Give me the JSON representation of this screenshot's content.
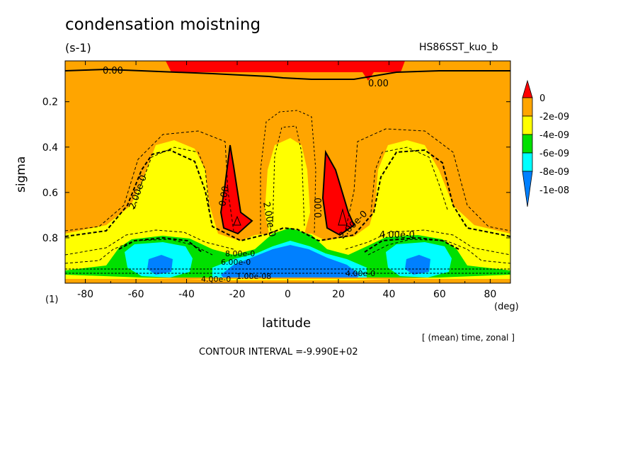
{
  "chart_data": {
    "type": "heatmap",
    "title": "condensation moistning",
    "units": "(s-1)",
    "dataset": "HS86SST_kuo_b",
    "xlabel": "latitude",
    "xunit": "(deg)",
    "ylabel": "sigma",
    "yunit": "(1)",
    "xlim": [
      -88,
      88
    ],
    "ylim": [
      0.02,
      1.0
    ],
    "y_inverted": true,
    "xticks": [
      "-80",
      "-60",
      "-40",
      "-20",
      "0",
      "20",
      "40",
      "60",
      "80"
    ],
    "yticks": [
      "0.2",
      "0.4",
      "0.6",
      "0.8"
    ],
    "x_tick_values": [
      -80,
      -60,
      -40,
      -20,
      0,
      20,
      40,
      60,
      80
    ],
    "y_tick_values": [
      0.2,
      0.4,
      0.6,
      0.8
    ],
    "legend": {
      "placement": "right",
      "labels": [
        "0",
        "-2e-09",
        "-4e-09",
        "-6e-09",
        "-8e-09",
        "-1e-08"
      ],
      "colors": [
        "#ff0000",
        "#ffa500",
        "#ffff00",
        "#00e000",
        "#00ffff",
        "#0080ff"
      ]
    },
    "contour_labels": [
      "0.00",
      "0.00",
      "0.00",
      "0.00",
      "2.00e-0",
      "2.00e-0",
      "2.00e-0",
      "4.00e-0",
      "4.00e-0",
      "4.00e-0",
      "6.00e-0",
      "8.00e-0",
      "1.00e-08"
    ],
    "footer_note": "[ (mean) time, zonal ]",
    "contour_interval": "CONTOUR INTERVAL =-9.990E+02"
  }
}
